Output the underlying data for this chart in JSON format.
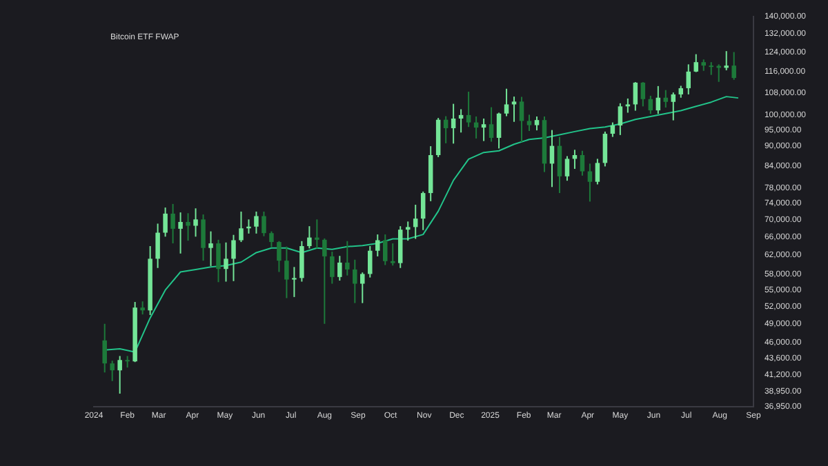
{
  "chart_data": {
    "type": "candlestick",
    "title": "Bitcoin ETF FWAP",
    "log": "y",
    "grid": false,
    "legend": false,
    "xlim": [
      "2024-01-01",
      "2025-09-01"
    ],
    "xticks": [
      {
        "value": "2024-01-01",
        "label": "2024"
      },
      {
        "value": "2024-02-01",
        "label": "Feb"
      },
      {
        "value": "2024-03-01",
        "label": "Mar"
      },
      {
        "value": "2024-04-01",
        "label": "Apr"
      },
      {
        "value": "2024-05-01",
        "label": "May"
      },
      {
        "value": "2024-06-01",
        "label": "Jun"
      },
      {
        "value": "2024-07-01",
        "label": "Jul"
      },
      {
        "value": "2024-08-01",
        "label": "Aug"
      },
      {
        "value": "2024-09-01",
        "label": "Sep"
      },
      {
        "value": "2024-10-01",
        "label": "Oct"
      },
      {
        "value": "2024-11-01",
        "label": "Nov"
      },
      {
        "value": "2024-12-01",
        "label": "Dec"
      },
      {
        "value": "2025-01-01",
        "label": "2025"
      },
      {
        "value": "2025-02-01",
        "label": "Feb"
      },
      {
        "value": "2025-03-01",
        "label": "Mar"
      },
      {
        "value": "2025-04-01",
        "label": "Apr"
      },
      {
        "value": "2025-05-01",
        "label": "May"
      },
      {
        "value": "2025-06-01",
        "label": "Jun"
      },
      {
        "value": "2025-07-01",
        "label": "Jul"
      },
      {
        "value": "2025-08-01",
        "label": "Aug"
      },
      {
        "value": "2025-09-01",
        "label": "Sep"
      }
    ],
    "ylim": [
      36950,
      140000
    ],
    "yticks": [
      {
        "value": 140000,
        "label": "140,000.00"
      },
      {
        "value": 132000,
        "label": "132,000.00"
      },
      {
        "value": 124000,
        "label": "124,000.00"
      },
      {
        "value": 116000,
        "label": "116,000.00"
      },
      {
        "value": 108000,
        "label": "108,000.00"
      },
      {
        "value": 100000,
        "label": "100,000.00"
      },
      {
        "value": 95000,
        "label": "95,000.00"
      },
      {
        "value": 90000,
        "label": "90,000.00"
      },
      {
        "value": 84000,
        "label": "84,000.00"
      },
      {
        "value": 78000,
        "label": "78,000.00"
      },
      {
        "value": 74000,
        "label": "74,000.00"
      },
      {
        "value": 70000,
        "label": "70,000.00"
      },
      {
        "value": 66000,
        "label": "66,000.00"
      },
      {
        "value": 62000,
        "label": "62,000.00"
      },
      {
        "value": 58000,
        "label": "58,000.00"
      },
      {
        "value": 55000,
        "label": "55,000.00"
      },
      {
        "value": 52000,
        "label": "52,000.00"
      },
      {
        "value": 49000,
        "label": "49,000.00"
      },
      {
        "value": 46000,
        "label": "46,000.00"
      },
      {
        "value": 43600,
        "label": "43,600.00"
      },
      {
        "value": 41200,
        "label": "41,200.00"
      },
      {
        "value": 38950,
        "label": "38,950.00"
      },
      {
        "value": 36950,
        "label": "36,950.00"
      }
    ],
    "series": [
      {
        "type": "candlestick",
        "colors": [
          "#1d7a3a",
          "#1d7a3a",
          "#74e597",
          "#1d7a3a",
          "#74e597",
          "#1d7a3a",
          "#74e597",
          "#74e597",
          "#74e597",
          "#1d7a3a",
          "#74e597",
          "#1d7a3a",
          "#74e597",
          "#1d7a3a",
          "#74e597",
          "#1d7a3a",
          "#74e597",
          "#74e597",
          "#74e597",
          "#74e597",
          "#74e597",
          "#1d7a3a",
          "#1d7a3a",
          "#1d7a3a",
          "#1d7a3a",
          "#74e597",
          "#74e597",
          "#74e597",
          "#1d7a3a",
          "#1d7a3a",
          "#1d7a3a",
          "#74e597",
          "#1d7a3a",
          "#1d7a3a",
          "#74e597",
          "#74e597",
          "#74e597",
          "#1d7a3a",
          "#1d7a3a",
          "#74e597",
          "#74e597",
          "#74e597",
          "#74e597",
          "#74e597",
          "#74e597",
          "#1d7a3a",
          "#74e597",
          "#74e597",
          "#1d7a3a",
          "#1d7a3a",
          "#74e597",
          "#1d7a3a",
          "#74e597",
          "#74e597",
          "#74e597",
          "#1d7a3a",
          "#1d7a3a",
          "#74e597",
          "#1d7a3a",
          "#74e597",
          "#1d7a3a",
          "#74e597",
          "#74e597",
          "#1d7a3a",
          "#1d7a3a",
          "#74e597",
          "#74e597",
          "#74e597",
          "#74e597",
          "#74e597",
          "#74e597",
          "#1d7a3a",
          "#1d7a3a",
          "#74e597",
          "#1d7a3a",
          "#74e597",
          "#74e597",
          "#74e597",
          "#74e597",
          "#1d7a3a",
          "#1d7a3a",
          "#1d7a3a",
          "#74e597",
          "#1d7a3a"
        ],
        "x": [
          "2024-01-11",
          "2024-01-18",
          "2024-01-25",
          "2024-02-01",
          "2024-02-08",
          "2024-02-15",
          "2024-02-22",
          "2024-02-29",
          "2024-03-07",
          "2024-03-14",
          "2024-03-21",
          "2024-03-28",
          "2024-04-04",
          "2024-04-11",
          "2024-04-18",
          "2024-04-25",
          "2024-05-02",
          "2024-05-09",
          "2024-05-16",
          "2024-05-23",
          "2024-05-30",
          "2024-06-06",
          "2024-06-13",
          "2024-06-20",
          "2024-06-27",
          "2024-07-04",
          "2024-07-11",
          "2024-07-18",
          "2024-07-25",
          "2024-08-01",
          "2024-08-08",
          "2024-08-15",
          "2024-08-22",
          "2024-08-29",
          "2024-09-05",
          "2024-09-12",
          "2024-09-19",
          "2024-09-26",
          "2024-10-03",
          "2024-10-10",
          "2024-10-17",
          "2024-10-24",
          "2024-10-31",
          "2024-11-07",
          "2024-11-14",
          "2024-11-21",
          "2024-11-28",
          "2024-12-05",
          "2024-12-12",
          "2024-12-19",
          "2024-12-26",
          "2025-01-02",
          "2025-01-09",
          "2025-01-16",
          "2025-01-23",
          "2025-01-30",
          "2025-02-06",
          "2025-02-13",
          "2025-02-20",
          "2025-02-27",
          "2025-03-06",
          "2025-03-13",
          "2025-03-20",
          "2025-03-27",
          "2025-04-03",
          "2025-04-10",
          "2025-04-17",
          "2025-04-24",
          "2025-05-01",
          "2025-05-08",
          "2025-05-15",
          "2025-05-22",
          "2025-05-29",
          "2025-06-05",
          "2025-06-12",
          "2025-06-19",
          "2025-06-26",
          "2025-07-03",
          "2025-07-10",
          "2025-07-17",
          "2025-07-24",
          "2025-07-31",
          "2025-08-07",
          "2025-08-14"
        ],
        "ohlc": [
          [
            46300,
            49000,
            41500,
            42800
          ],
          [
            42800,
            43200,
            40300,
            41800
          ],
          [
            41800,
            43900,
            38600,
            43300
          ],
          [
            43300,
            43900,
            42200,
            43100
          ],
          [
            43100,
            52800,
            43000,
            51800
          ],
          [
            51800,
            52900,
            50600,
            51300
          ],
          [
            51300,
            63900,
            50500,
            61200
          ],
          [
            61200,
            69000,
            59300,
            66900
          ],
          [
            66900,
            72900,
            66000,
            71400
          ],
          [
            71400,
            73800,
            64500,
            67800
          ],
          [
            67800,
            71700,
            62300,
            69400
          ],
          [
            69400,
            71500,
            65100,
            68500
          ],
          [
            68500,
            72700,
            66000,
            70000
          ],
          [
            70000,
            71200,
            60800,
            63500
          ],
          [
            63500,
            67200,
            59700,
            64500
          ],
          [
            64500,
            65300,
            56500,
            59100
          ],
          [
            59100,
            64700,
            56600,
            61200
          ],
          [
            61200,
            66400,
            56700,
            65200
          ],
          [
            65200,
            71900,
            64800,
            67900
          ],
          [
            67900,
            70000,
            66700,
            68300
          ],
          [
            68300,
            71900,
            66700,
            70800
          ],
          [
            70800,
            71900,
            66100,
            66800
          ],
          [
            66800,
            67200,
            63700,
            64800
          ],
          [
            64800,
            65000,
            58500,
            60800
          ],
          [
            60800,
            63800,
            53500,
            57000
          ],
          [
            57000,
            59500,
            53700,
            57300
          ],
          [
            57300,
            65000,
            56600,
            63900
          ],
          [
            63900,
            68400,
            63400,
            65800
          ],
          [
            65800,
            70000,
            63400,
            65300
          ],
          [
            65300,
            65600,
            49000,
            61700
          ],
          [
            61700,
            62700,
            56200,
            57500
          ],
          [
            57500,
            61800,
            56800,
            60400
          ],
          [
            60400,
            65000,
            57800,
            59000
          ],
          [
            59000,
            61000,
            52600,
            56200
          ],
          [
            56200,
            58400,
            52600,
            58100
          ],
          [
            58100,
            63900,
            57400,
            62900
          ],
          [
            62900,
            66500,
            61700,
            65200
          ],
          [
            65200,
            66500,
            59900,
            60700
          ],
          [
            60700,
            64500,
            59800,
            60300
          ],
          [
            60300,
            68400,
            59300,
            67600
          ],
          [
            67600,
            69500,
            65100,
            68200
          ],
          [
            68200,
            73600,
            65500,
            70200
          ],
          [
            70200,
            77000,
            67500,
            76600
          ],
          [
            76600,
            89900,
            74500,
            87200
          ],
          [
            87200,
            99000,
            86600,
            98400
          ],
          [
            98400,
            99600,
            90800,
            95600
          ],
          [
            95600,
            103900,
            90700,
            98800
          ],
          [
            98800,
            102000,
            94200,
            100000
          ],
          [
            100000,
            108300,
            96000,
            97500
          ],
          [
            97500,
            99500,
            92300,
            95800
          ],
          [
            95800,
            98800,
            91500,
            96900
          ],
          [
            96900,
            102700,
            91300,
            92500
          ],
          [
            92500,
            100800,
            89200,
            100500
          ],
          [
            100500,
            109400,
            99600,
            103700
          ],
          [
            103700,
            106500,
            97700,
            104700
          ],
          [
            104700,
            106400,
            91200,
            98000
          ],
          [
            98000,
            100100,
            94700,
            96600
          ],
          [
            96600,
            99500,
            94900,
            98300
          ],
          [
            98300,
            99500,
            82300,
            84700
          ],
          [
            84700,
            95000,
            78200,
            90000
          ],
          [
            90000,
            92800,
            76600,
            81100
          ],
          [
            81100,
            86900,
            79900,
            86100
          ],
          [
            86100,
            88800,
            83200,
            87200
          ],
          [
            87200,
            88500,
            81300,
            82500
          ],
          [
            82500,
            84700,
            74400,
            79600
          ],
          [
            79600,
            86100,
            78900,
            84900
          ],
          [
            84900,
            94500,
            83900,
            93800
          ],
          [
            93800,
            97500,
            92800,
            96500
          ],
          [
            96500,
            104100,
            93400,
            103000
          ],
          [
            103000,
            105800,
            100800,
            103700
          ],
          [
            103700,
            111900,
            101500,
            111700
          ],
          [
            111700,
            111900,
            103000,
            105600
          ],
          [
            105600,
            106800,
            100400,
            101600
          ],
          [
            101600,
            110400,
            100400,
            106100
          ],
          [
            106100,
            108900,
            102600,
            104600
          ],
          [
            104600,
            108000,
            98200,
            107300
          ],
          [
            107300,
            110500,
            106100,
            109600
          ],
          [
            109600,
            118900,
            107300,
            116000
          ],
          [
            116000,
            123100,
            115800,
            119800
          ],
          [
            119800,
            120900,
            116300,
            118400
          ],
          [
            118400,
            119800,
            114700,
            118300
          ],
          [
            118300,
            118900,
            112000,
            117500
          ],
          [
            117500,
            124400,
            116500,
            118400
          ],
          [
            118400,
            124000,
            112800,
            113500
          ]
        ]
      },
      {
        "type": "line",
        "color": "#22c48a",
        "x": [
          "2024-01-11",
          "2024-01-25",
          "2024-02-08",
          "2024-02-22",
          "2024-03-07",
          "2024-03-21",
          "2024-04-04",
          "2024-04-18",
          "2024-05-02",
          "2024-05-16",
          "2024-05-30",
          "2024-06-13",
          "2024-06-27",
          "2024-07-11",
          "2024-07-25",
          "2024-08-08",
          "2024-08-22",
          "2024-09-05",
          "2024-09-19",
          "2024-10-03",
          "2024-10-17",
          "2024-10-31",
          "2024-11-14",
          "2024-11-28",
          "2024-12-12",
          "2024-12-26",
          "2025-01-09",
          "2025-01-23",
          "2025-02-06",
          "2025-02-20",
          "2025-03-06",
          "2025-03-20",
          "2025-04-03",
          "2025-04-17",
          "2025-05-01",
          "2025-05-15",
          "2025-05-29",
          "2025-06-12",
          "2025-06-26",
          "2025-07-10",
          "2025-07-24",
          "2025-08-07",
          "2025-08-18"
        ],
        "values": [
          44800,
          45000,
          44500,
          50000,
          55000,
          58500,
          59000,
          59500,
          59800,
          60500,
          62500,
          63500,
          63500,
          62500,
          63500,
          63200,
          63800,
          64000,
          64500,
          65500,
          65500,
          66500,
          72000,
          80000,
          86000,
          88000,
          88500,
          90500,
          92000,
          92500,
          93500,
          94500,
          95500,
          96000,
          97000,
          98500,
          99500,
          100500,
          101500,
          103000,
          104500,
          106500,
          106000
        ]
      }
    ]
  }
}
